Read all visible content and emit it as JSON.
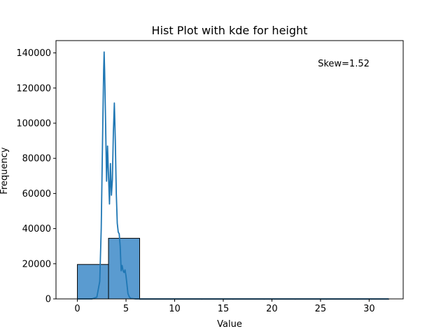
{
  "chart_data": {
    "type": "bar",
    "title": "Hist Plot with kde for height",
    "xlabel": "Value",
    "ylabel": "Frequency",
    "annotation": "Skew=1.52",
    "xlim": [
      -2.2,
      33.5
    ],
    "ylim": [
      0,
      147000
    ],
    "xticks": [
      0,
      5,
      10,
      15,
      20,
      25,
      30
    ],
    "yticks": [
      0,
      20000,
      40000,
      60000,
      80000,
      100000,
      120000,
      140000
    ],
    "bins": [
      {
        "x0": 0,
        "x1": 3.2,
        "count": 19600
      },
      {
        "x0": 3.2,
        "x1": 6.4,
        "count": 34500
      },
      {
        "x0": 6.4,
        "x1": 9.6,
        "count": 0
      },
      {
        "x0": 9.6,
        "x1": 12.8,
        "count": 0
      },
      {
        "x0": 12.8,
        "x1": 16.0,
        "count": 0
      },
      {
        "x0": 16.0,
        "x1": 19.2,
        "count": 0
      },
      {
        "x0": 19.2,
        "x1": 22.4,
        "count": 0
      },
      {
        "x0": 22.4,
        "x1": 25.6,
        "count": 0
      },
      {
        "x0": 25.6,
        "x1": 28.8,
        "count": 0
      },
      {
        "x0": 28.8,
        "x1": 32.0,
        "count": 0
      }
    ],
    "kde": {
      "x": [
        0,
        1.5,
        2.0,
        2.3,
        2.45,
        2.6,
        2.7,
        2.75,
        2.8,
        2.9,
        3.0,
        3.1,
        3.2,
        3.3,
        3.4,
        3.5,
        3.6,
        3.7,
        3.8,
        3.9,
        4.0,
        4.1,
        4.2,
        4.3,
        4.4,
        4.5,
        4.6,
        4.7,
        4.8,
        4.9,
        5.0,
        5.1,
        5.2,
        5.35,
        5.5,
        6.0,
        8.0,
        32.0
      ],
      "y": [
        0,
        0,
        1000,
        10000,
        40000,
        95000,
        130000,
        140500,
        130000,
        100000,
        67000,
        87000,
        70000,
        54000,
        77000,
        59000,
        68000,
        95000,
        111500,
        90000,
        60000,
        43000,
        38000,
        37000,
        30000,
        16000,
        19000,
        16000,
        15000,
        16500,
        13000,
        8000,
        3000,
        1000,
        300,
        0,
        0,
        0
      ]
    },
    "colors": {
      "bar_fill": "#5a9bd0",
      "bar_edge": "#000000",
      "kde_line": "#1f77b4"
    }
  }
}
